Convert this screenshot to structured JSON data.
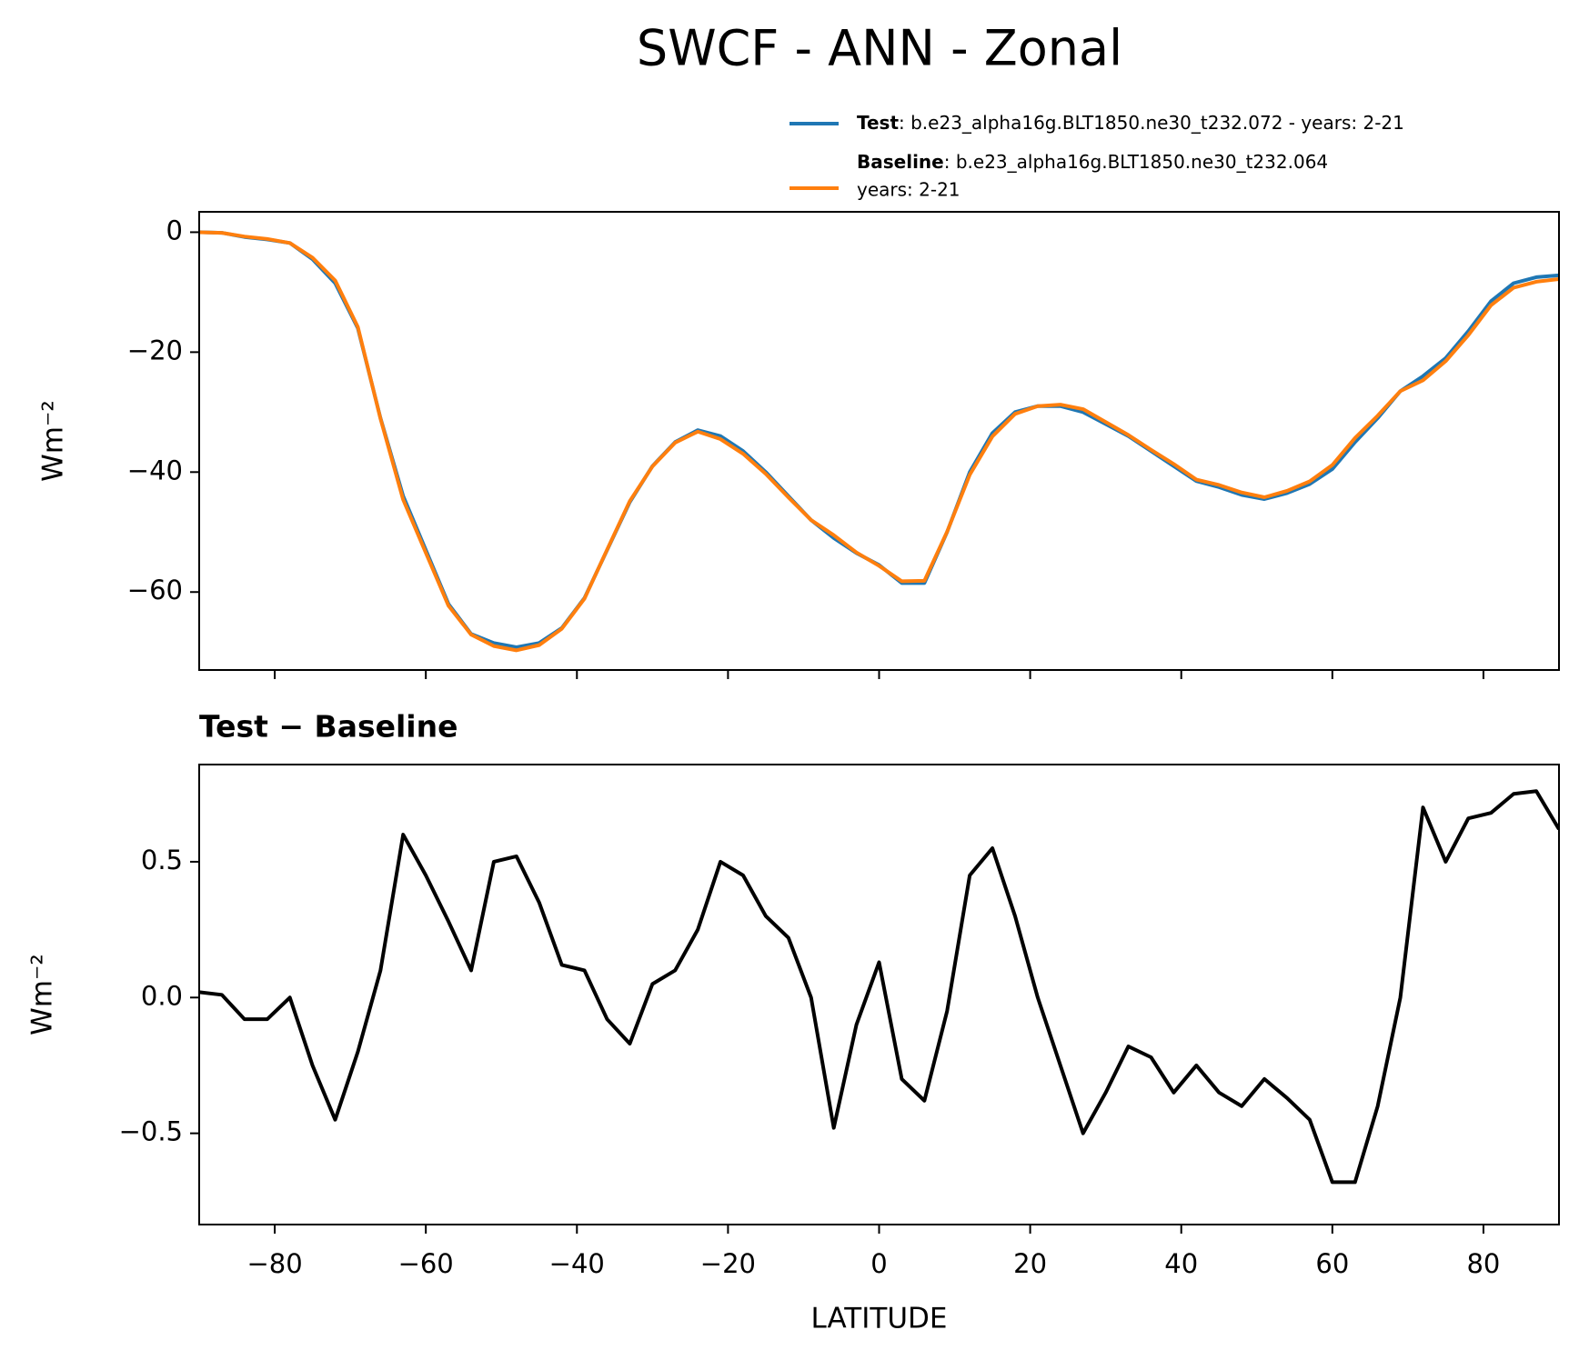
{
  "title": "SWCF - ANN - Zonal",
  "chart_data": [
    {
      "type": "line",
      "ylabel": "Wm⁻²",
      "x": [
        -90,
        -87,
        -84,
        -81,
        -78,
        -75,
        -72,
        -69,
        -66,
        -63,
        -60,
        -57,
        -54,
        -51,
        -48,
        -45,
        -42,
        -39,
        -36,
        -33,
        -30,
        -27,
        -24,
        -21,
        -18,
        -15,
        -12,
        -9,
        -6,
        -3,
        0,
        3,
        6,
        9,
        12,
        15,
        18,
        21,
        24,
        27,
        30,
        33,
        36,
        39,
        42,
        45,
        48,
        51,
        54,
        57,
        60,
        63,
        66,
        69,
        72,
        75,
        78,
        81,
        84,
        87,
        90
      ],
      "series": [
        {
          "name": "Test",
          "legend_text": [
            ": b.e23_alpha16g.BLT1850.ne30_t232.072 - years: 2-21"
          ],
          "color": "#1f77b4",
          "values": [
            0,
            -0.1,
            -0.8,
            -1.2,
            -1.8,
            -4.5,
            -8.5,
            -16,
            -31,
            -44,
            -53,
            -62,
            -67,
            -68.5,
            -69.2,
            -68.5,
            -66,
            -61,
            -53,
            -45,
            -39,
            -35,
            -33,
            -34,
            -36.5,
            -40,
            -44,
            -48,
            -51,
            -53.5,
            -55.5,
            -58.5,
            -58.5,
            -50,
            -40,
            -33.5,
            -30,
            -29,
            -29,
            -30,
            -32,
            -34,
            -36.5,
            -39,
            -41.5,
            -42.5,
            -43.8,
            -44.5,
            -43.5,
            -42,
            -39.5,
            -35,
            -31,
            -26.5,
            -24,
            -21,
            -16.5,
            -11.5,
            -8.5,
            -7.5,
            -7.2
          ]
        },
        {
          "name": "Baseline",
          "legend_text": [
            ": b.e23_alpha16g.BLT1850.ne30_t232.064",
            "years: 2-21"
          ],
          "color": "#ff7f0e",
          "values": [
            -0.02,
            -0.11,
            -0.72,
            -1.12,
            -1.8,
            -4.25,
            -8.05,
            -15.8,
            -31.1,
            -44.6,
            -53.45,
            -62.28,
            -67.1,
            -69.0,
            -69.72,
            -68.85,
            -66.12,
            -61.1,
            -52.92,
            -44.83,
            -39.05,
            -35.1,
            -33.25,
            -34.5,
            -36.95,
            -40.3,
            -44.22,
            -48.0,
            -50.52,
            -53.4,
            -55.63,
            -58.2,
            -58.12,
            -49.95,
            -40.45,
            -34.05,
            -30.3,
            -29.0,
            -28.75,
            -29.5,
            -31.65,
            -33.82,
            -36.28,
            -38.65,
            -41.25,
            -42.15,
            -43.4,
            -44.2,
            -43.13,
            -41.55,
            -38.82,
            -34.32,
            -30.6,
            -26.5,
            -24.7,
            -21.5,
            -17.16,
            -12.18,
            -9.25,
            -8.26,
            -7.82
          ]
        }
      ],
      "xlim": [
        -90,
        90
      ],
      "xticks": [
        -80,
        -60,
        -40,
        -20,
        0,
        20,
        40,
        60,
        80
      ],
      "ylim": [
        -73,
        3.4
      ],
      "yticks": [
        {
          "value": -60,
          "label": "−60"
        },
        {
          "value": -40,
          "label": "−40"
        },
        {
          "value": -20,
          "label": "−20"
        },
        0
      ]
    },
    {
      "type": "line",
      "title": "Test − Baseline",
      "ylabel": "Wm⁻²",
      "xlabel": "LATITUDE",
      "x": [
        -90,
        -87,
        -84,
        -81,
        -78,
        -75,
        -72,
        -69,
        -66,
        -63,
        -60,
        -57,
        -54,
        -51,
        -48,
        -45,
        -42,
        -39,
        -36,
        -33,
        -30,
        -27,
        -24,
        -21,
        -18,
        -15,
        -12,
        -9,
        -6,
        -3,
        0,
        3,
        6,
        9,
        12,
        15,
        18,
        21,
        24,
        27,
        30,
        33,
        36,
        39,
        42,
        45,
        48,
        51,
        54,
        57,
        60,
        63,
        66,
        69,
        72,
        75,
        78,
        81,
        84,
        87,
        90
      ],
      "series": [
        {
          "color": "#000000",
          "values": [
            0.02,
            0.01,
            -0.08,
            -0.08,
            0.0,
            -0.25,
            -0.45,
            -0.2,
            0.1,
            0.6,
            0.45,
            0.28,
            0.1,
            0.5,
            0.52,
            0.35,
            0.12,
            0.1,
            -0.08,
            -0.17,
            0.05,
            0.1,
            0.25,
            0.5,
            0.45,
            0.3,
            0.22,
            0.0,
            -0.48,
            -0.1,
            0.13,
            -0.3,
            -0.38,
            -0.05,
            0.45,
            0.55,
            0.3,
            0.0,
            -0.25,
            -0.5,
            -0.35,
            -0.18,
            -0.22,
            -0.35,
            -0.25,
            -0.35,
            -0.4,
            -0.3,
            -0.37,
            -0.45,
            -0.68,
            -0.68,
            -0.4,
            0.0,
            0.7,
            0.5,
            0.66,
            0.68,
            0.75,
            0.76,
            0.62
          ]
        }
      ],
      "xlim": [
        -90,
        90
      ],
      "xticks": [
        {
          "value": -80,
          "label": "−80"
        },
        {
          "value": -60,
          "label": "−60"
        },
        {
          "value": -40,
          "label": "−40"
        },
        {
          "value": -20,
          "label": "−20"
        },
        0,
        20,
        40,
        60,
        80
      ],
      "ylim": [
        -0.836,
        0.858
      ],
      "yticks": [
        {
          "value": -0.5,
          "label": "−0.5"
        },
        {
          "value": 0,
          "label": "0.0"
        },
        0.5
      ]
    }
  ]
}
